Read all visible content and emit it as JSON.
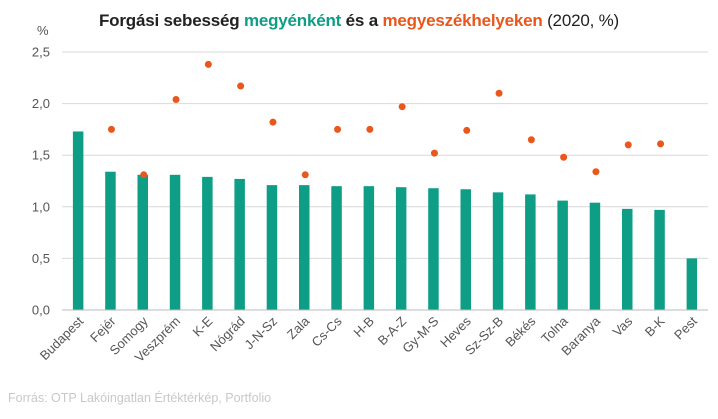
{
  "title": {
    "part1": "Forgási sebesség ",
    "part2": "megyénként",
    "part3": " és a ",
    "part4": "megyeszékhelyeken",
    "part5": " (2020, %)"
  },
  "source": "Forrás: OTP Lakóingatlan Értéktérkép, Portfolio",
  "colors": {
    "bar": "#0e9e86",
    "dot": "#e8571c",
    "highlight_green": "#0e9e86",
    "highlight_orange": "#e8571c",
    "grid": "#d9d9d9",
    "axis": "#bbbbbb"
  },
  "chart_data": {
    "type": "bar",
    "ylabel": "%",
    "ylim": [
      0,
      2.5
    ],
    "yticks": [
      0,
      0.5,
      1.0,
      1.5,
      2.0,
      2.5
    ],
    "ytick_labels": [
      "0,0",
      "0,5",
      "1,0",
      "1,5",
      "2,0",
      "2,5"
    ],
    "grid": true,
    "categories": [
      "Budapest",
      "Fejér",
      "Somogy",
      "Veszprém",
      "K-E",
      "Nógrád",
      "J-N-Sz",
      "Zala",
      "Cs-Cs",
      "H-B",
      "B-A-Z",
      "Gy-M-S",
      "Heves",
      "Sz-Sz-B",
      "Békés",
      "Tolna",
      "Baranya",
      "Vas",
      "B-K",
      "Pest"
    ],
    "series": [
      {
        "kind": "bar",
        "color": "#0e9e86",
        "values": [
          1.73,
          1.34,
          1.31,
          1.31,
          1.29,
          1.27,
          1.21,
          1.21,
          1.2,
          1.2,
          1.19,
          1.18,
          1.17,
          1.14,
          1.12,
          1.06,
          1.04,
          0.98,
          0.97,
          0.5
        ]
      },
      {
        "kind": "scatter",
        "color": "#e8571c",
        "values": [
          null,
          1.75,
          1.31,
          2.04,
          2.38,
          2.17,
          1.82,
          1.31,
          1.75,
          1.75,
          1.97,
          1.52,
          1.74,
          2.1,
          1.65,
          1.48,
          1.34,
          1.6,
          1.61,
          null
        ]
      }
    ]
  }
}
